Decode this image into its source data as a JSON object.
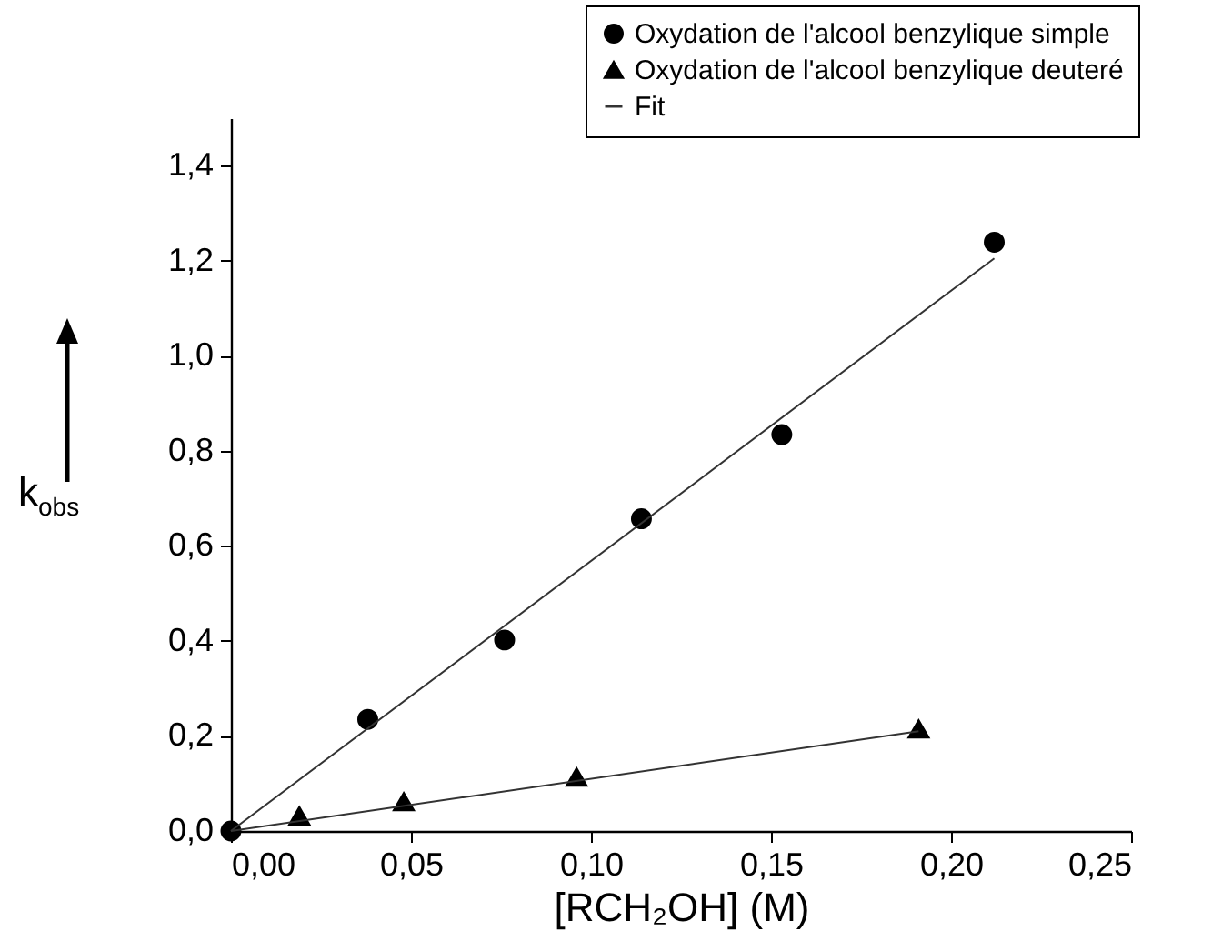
{
  "chart_data": {
    "type": "scatter",
    "xlabel": "[RCH₂OH]  (M)",
    "ylabel": "k$_{obs}$",
    "xlim": [
      0,
      0.25
    ],
    "ylim": [
      0,
      1.5
    ],
    "xticks": [
      {
        "value": 0,
        "label": "0,00"
      },
      {
        "value": 0.05,
        "label": "0,05"
      },
      {
        "value": 0.1,
        "label": "0,10"
      },
      {
        "value": 0.15,
        "label": "0,15"
      },
      {
        "value": 0.2,
        "label": "0,20"
      },
      {
        "value": 0.25,
        "label": "0,25"
      }
    ],
    "yticks": [
      {
        "value": 0,
        "label": "0,0"
      },
      {
        "value": 0.2,
        "label": "0,2"
      },
      {
        "value": 0.4,
        "label": "0,4"
      },
      {
        "value": 0.6,
        "label": "0,6"
      },
      {
        "value": 0.8,
        "label": "0,8"
      },
      {
        "value": 1.0,
        "label": "1,0"
      },
      {
        "value": 1.2,
        "label": "1,2"
      },
      {
        "value": 1.4,
        "label": "1,4"
      }
    ],
    "grid": false,
    "legend": "top right",
    "series": [
      {
        "name": "Oxydation de l'alcool benzylique simple",
        "type": "scatter",
        "marker": "circle",
        "color": "#000000",
        "x": [
          0,
          0.038,
          0.076,
          0.114,
          0.153,
          0.212
        ],
        "values": [
          0,
          0.235,
          0.402,
          0.657,
          0.834,
          1.239
        ]
      },
      {
        "name": "Oxydation de l'alcool benzylique deuteré",
        "type": "scatter",
        "marker": "triangle",
        "color": "#000000",
        "x": [
          0.019,
          0.048,
          0.096,
          0.191
        ],
        "values": [
          0.031,
          0.061,
          0.113,
          0.214
        ]
      },
      {
        "name": "Fit",
        "type": "line",
        "marker": "none",
        "color": "#333333",
        "x": [
          0,
          0.212
        ],
        "values": [
          0,
          1.205
        ]
      },
      {
        "type": "line",
        "marker": "none",
        "color": "#333333",
        "x": [
          0,
          0.191
        ],
        "values": [
          0,
          0.21
        ]
      }
    ]
  }
}
